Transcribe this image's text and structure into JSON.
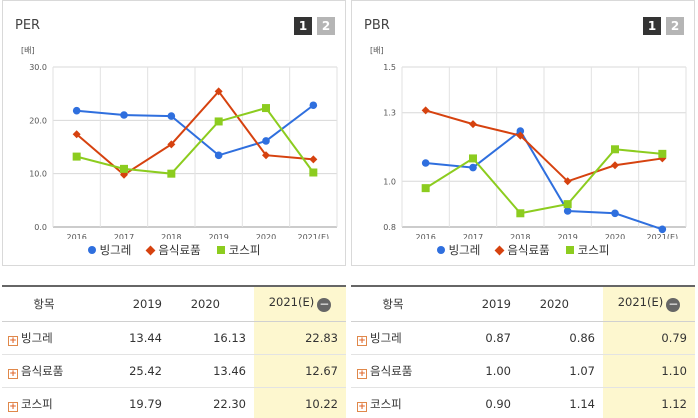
{
  "panels": [
    {
      "title": "PER",
      "pages": [
        "1",
        "2"
      ],
      "unit": "[배]",
      "legend": [
        "빙그레",
        "음식료품",
        "코스피"
      ],
      "table": {
        "header": [
          "항목",
          "2019",
          "2020",
          "2021(E)"
        ],
        "collapse_glyph": "−",
        "expand_glyph": "+",
        "rows": [
          {
            "name": "빙그레",
            "v": [
              "13.44",
              "16.13",
              "22.83"
            ]
          },
          {
            "name": "음식료품",
            "v": [
              "25.42",
              "13.46",
              "12.67"
            ]
          },
          {
            "name": "코스피",
            "v": [
              "19.79",
              "22.30",
              "10.22"
            ]
          }
        ]
      }
    },
    {
      "title": "PBR",
      "pages": [
        "1",
        "2"
      ],
      "unit": "[배]",
      "legend": [
        "빙그레",
        "음식료품",
        "코스피"
      ],
      "table": {
        "header": [
          "항목",
          "2019",
          "2020",
          "2021(E)"
        ],
        "collapse_glyph": "−",
        "expand_glyph": "+",
        "rows": [
          {
            "name": "빙그레",
            "v": [
              "0.87",
              "0.86",
              "0.79"
            ]
          },
          {
            "name": "음식료품",
            "v": [
              "1.00",
              "1.07",
              "1.10"
            ]
          },
          {
            "name": "코스피",
            "v": [
              "0.90",
              "1.14",
              "1.12"
            ]
          }
        ]
      }
    }
  ],
  "chart_data": [
    {
      "type": "line",
      "categories": [
        "2016",
        "2017",
        "2018",
        "2019",
        "2020",
        "2021(E)"
      ],
      "yticks": [
        "0.0",
        "10.0",
        "20.0",
        "30.0"
      ],
      "ylim": [
        0,
        30
      ],
      "grid": true,
      "legend_position": "bottom",
      "series": [
        {
          "name": "빙그레",
          "color": "#2f6fde",
          "marker": "circle",
          "values": [
            21.8,
            21.0,
            20.8,
            13.44,
            16.13,
            22.83
          ]
        },
        {
          "name": "음식료품",
          "color": "#d6420f",
          "marker": "diamond",
          "values": [
            17.4,
            9.8,
            15.5,
            25.42,
            13.46,
            12.67
          ]
        },
        {
          "name": "코스피",
          "color": "#8ccc1f",
          "marker": "square",
          "values": [
            13.2,
            10.9,
            10.0,
            19.79,
            22.3,
            10.22
          ]
        }
      ]
    },
    {
      "type": "line",
      "categories": [
        "2016",
        "2017",
        "2018",
        "2019",
        "2020",
        "2021(E)"
      ],
      "yticks": [
        "0.8",
        "1.0",
        "1.3",
        "1.5"
      ],
      "ylim": [
        0.8,
        1.5
      ],
      "grid": true,
      "legend_position": "bottom",
      "series": [
        {
          "name": "빙그레",
          "color": "#2f6fde",
          "marker": "circle",
          "values": [
            1.08,
            1.06,
            1.22,
            0.87,
            0.86,
            0.79
          ]
        },
        {
          "name": "음식료품",
          "color": "#d6420f",
          "marker": "diamond",
          "values": [
            1.31,
            1.25,
            1.2,
            1.0,
            1.07,
            1.1
          ]
        },
        {
          "name": "코스피",
          "color": "#8ccc1f",
          "marker": "square",
          "values": [
            0.97,
            1.1,
            0.86,
            0.9,
            1.14,
            1.12
          ]
        }
      ]
    }
  ]
}
